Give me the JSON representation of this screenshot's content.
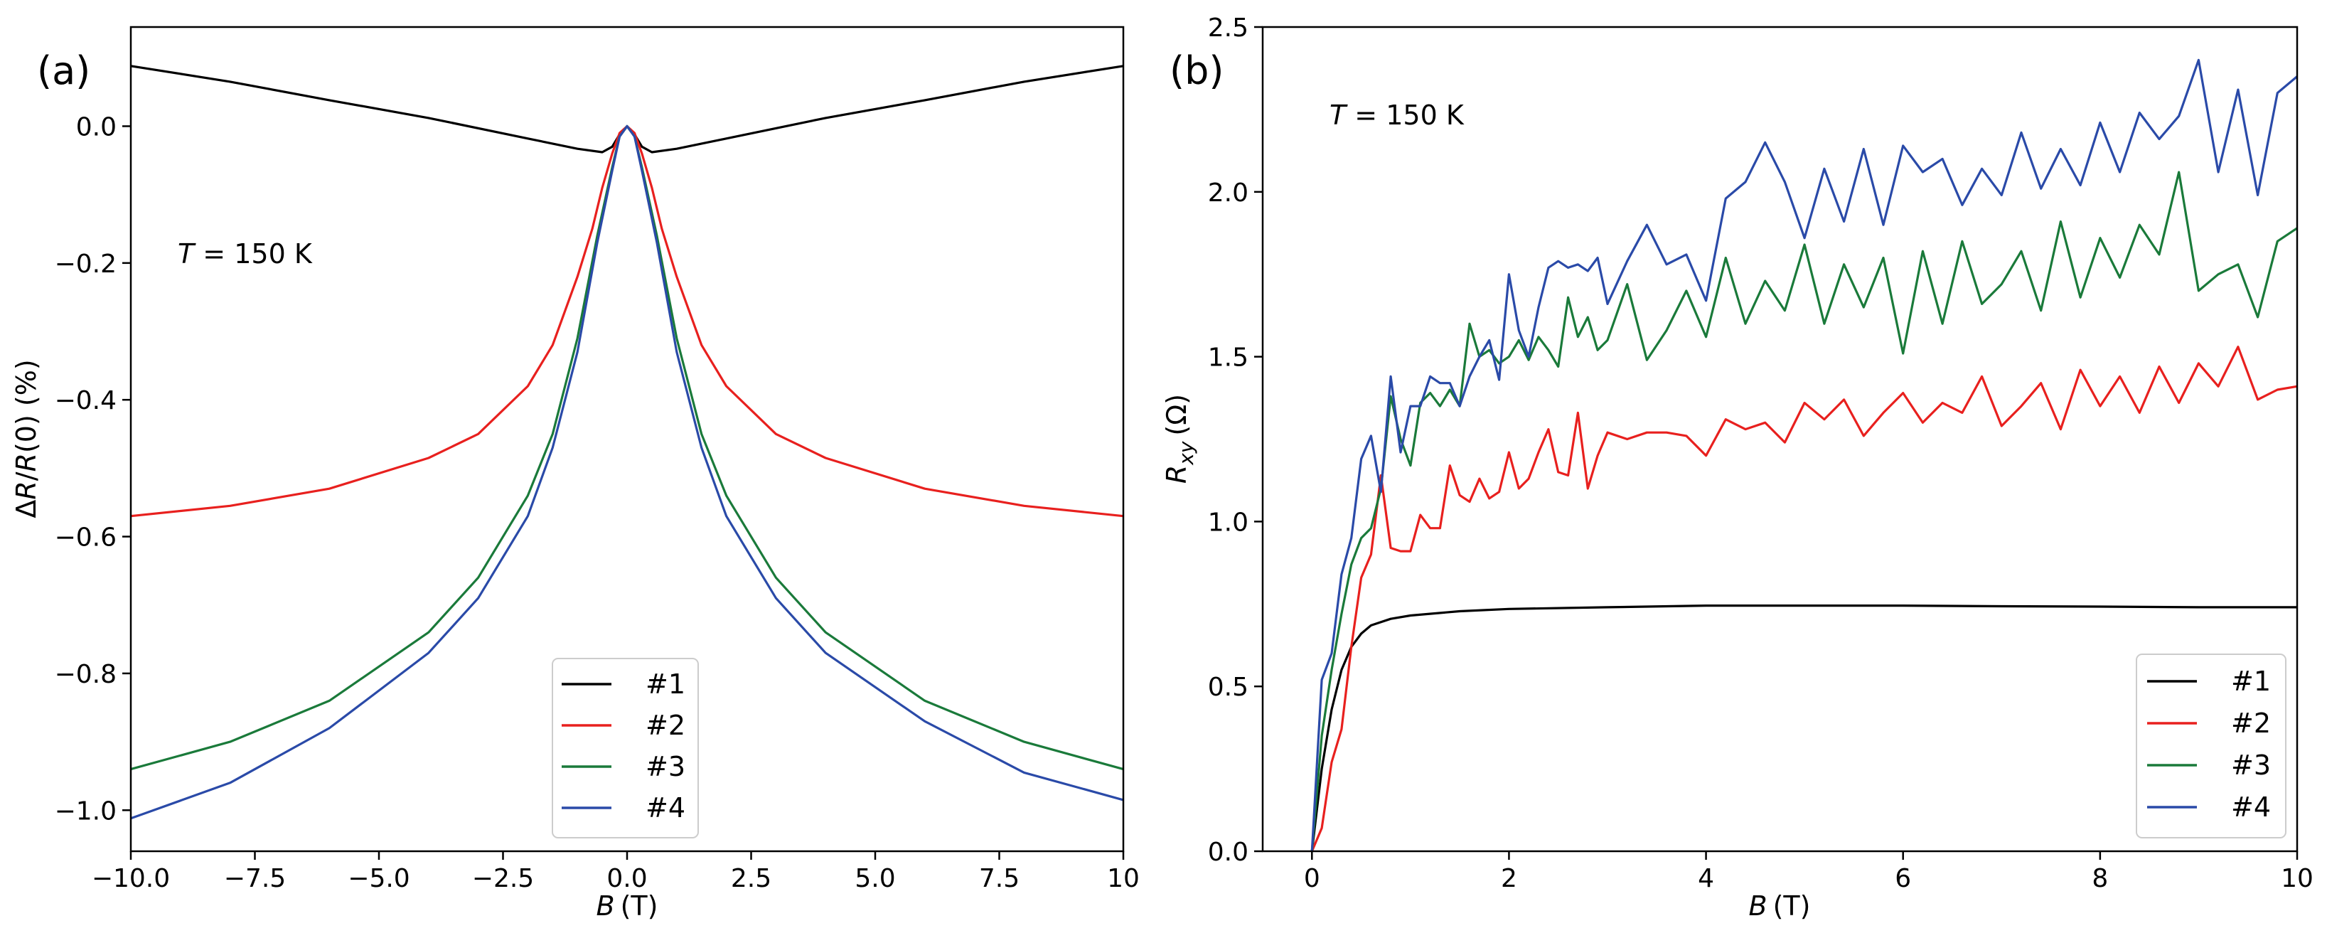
{
  "chart_data": [
    {
      "panel_label": "(a)",
      "type": "line",
      "xlabel_symbol": "B",
      "xlabel_unit": "(T)",
      "ylabel_parts": [
        "Δ",
        "R",
        "/",
        "R",
        "(0) (%)"
      ],
      "xlim": [
        -10,
        10
      ],
      "ylim": [
        -1.06,
        0.145
      ],
      "xticks": [
        -10,
        -7.5,
        -5,
        -2.5,
        0,
        2.5,
        5,
        7.5,
        10
      ],
      "xtick_labels": [
        "−10.0",
        "−7.5",
        "−5.0",
        "−2.5",
        "0.0",
        "2.5",
        "5.0",
        "7.5",
        "10"
      ],
      "yticks": [
        0.0,
        -0.2,
        -0.4,
        -0.6,
        -0.8,
        -1.0
      ],
      "ytick_labels": [
        "0.0",
        "−0.2",
        "−0.4",
        "−0.6",
        "−0.8",
        "−1.0"
      ],
      "annotation": {
        "symbol": "T",
        "rest": " = 150 K"
      },
      "legend": {
        "position": "lower-center",
        "entries": [
          "#1",
          "#2",
          "#3",
          "#4"
        ]
      },
      "series": [
        {
          "name": "#1",
          "color": "#000000",
          "x": [
            -10,
            -8,
            -6,
            -4,
            -2,
            -1,
            -0.5,
            -0.3,
            -0.15,
            0,
            0.15,
            0.3,
            0.5,
            1,
            2,
            4,
            6,
            8,
            10
          ],
          "y": [
            0.088,
            0.065,
            0.038,
            0.012,
            -0.018,
            -0.033,
            -0.038,
            -0.03,
            -0.012,
            0.0,
            -0.012,
            -0.03,
            -0.038,
            -0.033,
            -0.018,
            0.012,
            0.038,
            0.065,
            0.088
          ]
        },
        {
          "name": "#2",
          "color": "#e8201e",
          "x": [
            -10,
            -8,
            -6,
            -4,
            -3,
            -2,
            -1.5,
            -1,
            -0.7,
            -0.5,
            -0.3,
            -0.15,
            0,
            0.15,
            0.3,
            0.5,
            0.7,
            1,
            1.5,
            2,
            3,
            4,
            6,
            8,
            10
          ],
          "y": [
            -0.57,
            -0.555,
            -0.53,
            -0.485,
            -0.45,
            -0.38,
            -0.32,
            -0.22,
            -0.15,
            -0.09,
            -0.04,
            -0.01,
            0.0,
            -0.01,
            -0.04,
            -0.09,
            -0.15,
            -0.22,
            -0.32,
            -0.38,
            -0.45,
            -0.485,
            -0.53,
            -0.555,
            -0.57
          ]
        },
        {
          "name": "#3",
          "color": "#1a7a3a",
          "x": [
            -10,
            -8,
            -6,
            -4,
            -3,
            -2,
            -1.5,
            -1,
            -0.6,
            -0.3,
            -0.15,
            0,
            0.15,
            0.3,
            0.6,
            1,
            1.5,
            2,
            3,
            4,
            6,
            8,
            10
          ],
          "y": [
            -0.94,
            -0.9,
            -0.84,
            -0.74,
            -0.66,
            -0.54,
            -0.45,
            -0.31,
            -0.16,
            -0.06,
            -0.015,
            0.0,
            -0.015,
            -0.06,
            -0.16,
            -0.31,
            -0.45,
            -0.54,
            -0.66,
            -0.74,
            -0.84,
            -0.9,
            -0.94
          ]
        },
        {
          "name": "#4",
          "color": "#2a4aa8",
          "x": [
            -10,
            -8,
            -6,
            -4,
            -3,
            -2,
            -1.5,
            -1,
            -0.6,
            -0.3,
            -0.15,
            0,
            0.15,
            0.3,
            0.6,
            1,
            1.5,
            2,
            3,
            4,
            6,
            8,
            10
          ],
          "y": [
            -1.012,
            -0.96,
            -0.88,
            -0.77,
            -0.69,
            -0.57,
            -0.47,
            -0.33,
            -0.17,
            -0.065,
            -0.015,
            0.0,
            -0.015,
            -0.065,
            -0.17,
            -0.33,
            -0.47,
            -0.57,
            -0.69,
            -0.77,
            -0.87,
            -0.945,
            -0.985
          ]
        }
      ]
    },
    {
      "panel_label": "(b)",
      "type": "line",
      "xlabel_symbol": "B",
      "xlabel_unit": "(T)",
      "ylabel_symbol": "R",
      "ylabel_sub": "xy",
      "ylabel_unit": "(Ω)",
      "xlim": [
        -0.5,
        10
      ],
      "ylim": [
        0,
        2.5
      ],
      "xticks": [
        0,
        2,
        4,
        6,
        8,
        10
      ],
      "xtick_labels": [
        "0",
        "2",
        "4",
        "6",
        "8",
        "10"
      ],
      "yticks": [
        0.0,
        0.5,
        1.0,
        1.5,
        2.0,
        2.5
      ],
      "ytick_labels": [
        "0.0",
        "0.5",
        "1.0",
        "1.5",
        "2.0",
        "2.5"
      ],
      "annotation": {
        "symbol": "T",
        "rest": " = 150 K"
      },
      "legend": {
        "position": "lower-right",
        "entries": [
          "#1",
          "#2",
          "#3",
          "#4"
        ]
      },
      "series": [
        {
          "name": "#1",
          "color": "#000000",
          "x": [
            0,
            0.1,
            0.2,
            0.3,
            0.4,
            0.5,
            0.6,
            0.8,
            1.0,
            1.5,
            2,
            3,
            4,
            5,
            6,
            7,
            8,
            9,
            10
          ],
          "y": [
            0.0,
            0.25,
            0.43,
            0.55,
            0.62,
            0.66,
            0.685,
            0.705,
            0.715,
            0.728,
            0.735,
            0.74,
            0.745,
            0.745,
            0.745,
            0.743,
            0.742,
            0.74,
            0.74
          ]
        },
        {
          "name": "#2",
          "color": "#e8201e",
          "x": [
            0,
            0.1,
            0.2,
            0.3,
            0.4,
            0.5,
            0.6,
            0.7,
            0.8,
            0.9,
            1.0,
            1.1,
            1.2,
            1.3,
            1.4,
            1.5,
            1.6,
            1.7,
            1.8,
            1.9,
            2.0,
            2.1,
            2.2,
            2.3,
            2.4,
            2.5,
            2.6,
            2.7,
            2.8,
            2.9,
            3.0,
            3.2,
            3.4,
            3.6,
            3.8,
            4.0,
            4.2,
            4.4,
            4.6,
            4.8,
            5.0,
            5.2,
            5.4,
            5.6,
            5.8,
            6.0,
            6.2,
            6.4,
            6.6,
            6.8,
            7.0,
            7.2,
            7.4,
            7.6,
            7.8,
            8.0,
            8.2,
            8.4,
            8.6,
            8.8,
            9.0,
            9.2,
            9.4,
            9.6,
            9.8,
            10.0
          ],
          "y": [
            0.0,
            0.07,
            0.27,
            0.37,
            0.62,
            0.83,
            0.9,
            1.14,
            0.92,
            0.91,
            0.91,
            1.02,
            0.98,
            0.98,
            1.17,
            1.08,
            1.06,
            1.13,
            1.07,
            1.09,
            1.21,
            1.1,
            1.13,
            1.21,
            1.28,
            1.15,
            1.14,
            1.33,
            1.1,
            1.2,
            1.27,
            1.25,
            1.27,
            1.27,
            1.26,
            1.2,
            1.31,
            1.28,
            1.3,
            1.24,
            1.36,
            1.31,
            1.37,
            1.26,
            1.33,
            1.39,
            1.3,
            1.36,
            1.33,
            1.44,
            1.29,
            1.35,
            1.42,
            1.28,
            1.46,
            1.35,
            1.44,
            1.33,
            1.47,
            1.36,
            1.48,
            1.41,
            1.53,
            1.37,
            1.4,
            1.41
          ]
        },
        {
          "name": "#3",
          "color": "#1a7a3a",
          "x": [
            0,
            0.1,
            0.2,
            0.3,
            0.4,
            0.5,
            0.6,
            0.7,
            0.8,
            0.9,
            1.0,
            1.1,
            1.2,
            1.3,
            1.4,
            1.5,
            1.6,
            1.7,
            1.8,
            1.9,
            2.0,
            2.1,
            2.2,
            2.3,
            2.4,
            2.5,
            2.6,
            2.7,
            2.8,
            2.9,
            3.0,
            3.2,
            3.4,
            3.6,
            3.8,
            4.0,
            4.2,
            4.4,
            4.6,
            4.8,
            5.0,
            5.2,
            5.4,
            5.6,
            5.8,
            6.0,
            6.2,
            6.4,
            6.6,
            6.8,
            7.0,
            7.2,
            7.4,
            7.6,
            7.8,
            8.0,
            8.2,
            8.4,
            8.6,
            8.8,
            9.0,
            9.2,
            9.4,
            9.6,
            9.8,
            10.0
          ],
          "y": [
            0.0,
            0.35,
            0.55,
            0.72,
            0.87,
            0.95,
            0.98,
            1.1,
            1.38,
            1.25,
            1.17,
            1.36,
            1.39,
            1.35,
            1.4,
            1.35,
            1.6,
            1.5,
            1.52,
            1.48,
            1.5,
            1.55,
            1.49,
            1.56,
            1.52,
            1.47,
            1.68,
            1.56,
            1.62,
            1.52,
            1.55,
            1.72,
            1.49,
            1.58,
            1.7,
            1.56,
            1.8,
            1.6,
            1.73,
            1.64,
            1.84,
            1.6,
            1.78,
            1.65,
            1.8,
            1.51,
            1.82,
            1.6,
            1.85,
            1.66,
            1.72,
            1.82,
            1.64,
            1.91,
            1.68,
            1.86,
            1.74,
            1.9,
            1.81,
            2.06,
            1.7,
            1.75,
            1.78,
            1.62,
            1.85,
            1.89
          ]
        },
        {
          "name": "#4",
          "color": "#2a4aa8",
          "x": [
            0,
            0.1,
            0.2,
            0.3,
            0.4,
            0.5,
            0.6,
            0.7,
            0.8,
            0.9,
            1.0,
            1.1,
            1.2,
            1.3,
            1.4,
            1.5,
            1.6,
            1.7,
            1.8,
            1.9,
            2.0,
            2.1,
            2.2,
            2.3,
            2.4,
            2.5,
            2.6,
            2.7,
            2.8,
            2.9,
            3.0,
            3.2,
            3.4,
            3.6,
            3.8,
            4.0,
            4.2,
            4.4,
            4.6,
            4.8,
            5.0,
            5.2,
            5.4,
            5.6,
            5.8,
            6.0,
            6.2,
            6.4,
            6.6,
            6.8,
            7.0,
            7.2,
            7.4,
            7.6,
            7.8,
            8.0,
            8.2,
            8.4,
            8.6,
            8.8,
            9.0,
            9.2,
            9.4,
            9.6,
            9.8,
            10.0
          ],
          "y": [
            0.0,
            0.52,
            0.6,
            0.84,
            0.95,
            1.19,
            1.26,
            1.09,
            1.44,
            1.21,
            1.35,
            1.35,
            1.44,
            1.42,
            1.42,
            1.35,
            1.44,
            1.5,
            1.55,
            1.43,
            1.75,
            1.58,
            1.5,
            1.65,
            1.77,
            1.79,
            1.77,
            1.78,
            1.76,
            1.8,
            1.66,
            1.79,
            1.9,
            1.78,
            1.81,
            1.67,
            1.98,
            2.03,
            2.15,
            2.03,
            1.86,
            2.07,
            1.91,
            2.13,
            1.9,
            2.14,
            2.06,
            2.1,
            1.96,
            2.07,
            1.99,
            2.18,
            2.01,
            2.13,
            2.02,
            2.21,
            2.06,
            2.24,
            2.16,
            2.23,
            2.4,
            2.06,
            2.31,
            1.99,
            2.3,
            2.35
          ]
        }
      ]
    }
  ]
}
